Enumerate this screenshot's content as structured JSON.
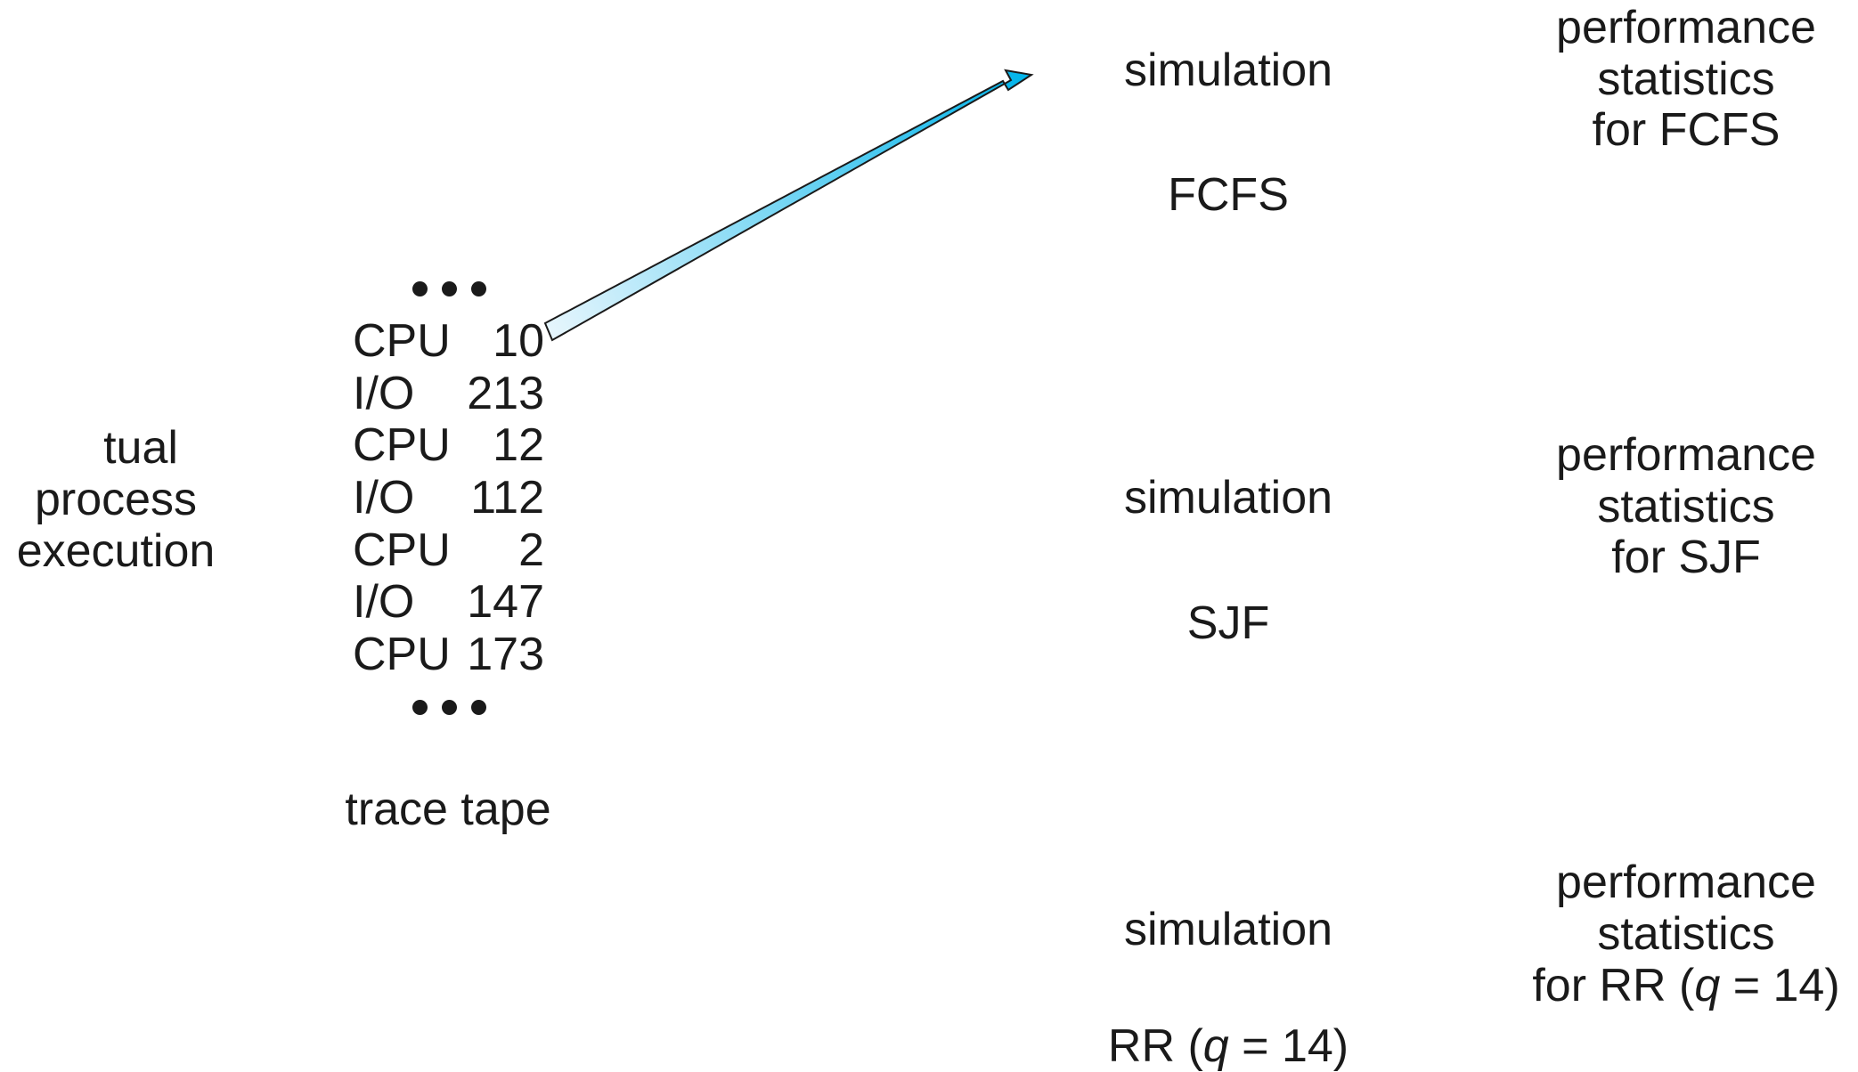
{
  "actual_process": {
    "lines": [
      "tual",
      "process",
      "execution"
    ]
  },
  "trace_tape": {
    "rows": [
      {
        "op": "CPU",
        "value": "10"
      },
      {
        "op": "I/O",
        "value": "213"
      },
      {
        "op": "CPU",
        "value": "12"
      },
      {
        "op": "I/O",
        "value": "112"
      },
      {
        "op": "CPU",
        "value": "2"
      },
      {
        "op": "I/O",
        "value": "147"
      },
      {
        "op": "CPU",
        "value": "173"
      }
    ],
    "label": "trace tape"
  },
  "simulations": [
    {
      "title": "simulation",
      "algorithm": "FCFS"
    },
    {
      "title": "simulation",
      "algorithm": "SJF"
    },
    {
      "title": "simulation",
      "algorithm_prefix": "RR (",
      "algorithm_var": "q",
      "algorithm_suffix": " = 14)"
    }
  ],
  "statistics": [
    {
      "line1": "performance",
      "line2": "statistics",
      "line3": "for FCFS"
    },
    {
      "line1": "performance",
      "line2": "statistics",
      "line3": "for SJF"
    },
    {
      "line1": "performance",
      "line2": "statistics",
      "line3_prefix": "for RR (",
      "line3_var": "q",
      "line3_suffix": " = 14)"
    }
  ],
  "colors": {
    "arrow_light": "#e8f6fd",
    "arrow_dark": "#00b4ea",
    "arrow_stroke": "#1a1a1a"
  }
}
